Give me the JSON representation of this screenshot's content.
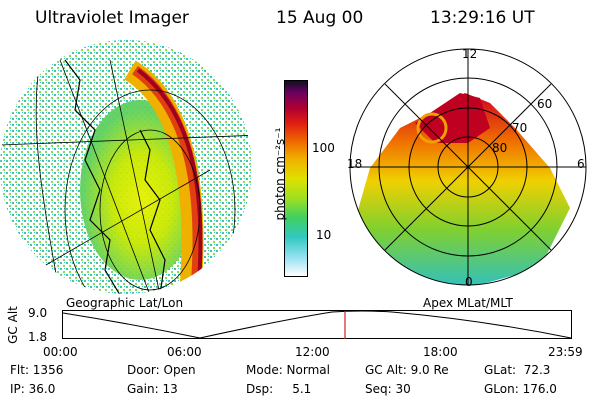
{
  "header": {
    "instrument": "Ultraviolet Imager",
    "date": "15 Aug 00",
    "time": "13:29:16 UT"
  },
  "colorbar": {
    "unit_label": "photon cm⁻²s⁻¹",
    "ticks": [
      "100",
      "10"
    ]
  },
  "left_panel": {
    "caption": "Geographic Lat/Lon"
  },
  "right_panel": {
    "caption": "Apex MLat/MLT",
    "mlt_labels": [
      "12",
      "18",
      "6",
      "0"
    ],
    "lat_labels": [
      "60",
      "70",
      "80"
    ]
  },
  "altitude_plot": {
    "ylabel": "GC Alt",
    "yticks": [
      "9.0",
      "1.8"
    ],
    "xticks": [
      "00:00",
      "06:00",
      "12:00",
      "18:00",
      "23:59"
    ],
    "marker_time": "13:29:16"
  },
  "info": {
    "flt": "Flt: 1356",
    "ip": "IP: 36.0",
    "door": "Door: Open",
    "gain": "Gain: 13",
    "mode": "Mode: Normal",
    "dsp": "Dsp:     5.1",
    "gcalt": "GC Alt: 9.0 Re",
    "seq": "Seq: 30",
    "glat": "GLat:  72.3",
    "glon": "GLon: 176.0"
  },
  "colors": {
    "marker": "#d02020",
    "aurora_high": "#b00020",
    "aurora_mid": "#f0b000",
    "aurora_low": "#30d040"
  }
}
